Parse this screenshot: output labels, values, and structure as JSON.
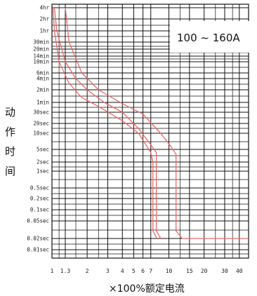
{
  "chart_data": {
    "type": "line",
    "annotation": "100 ~ 160A",
    "ylabel": "动作时间",
    "xlabel": "×100%额定电流",
    "x_scale": "log",
    "xlim": [
      1,
      48
    ],
    "x_ticks": [
      {
        "value": 1,
        "label": "1"
      },
      {
        "value": 1.3,
        "label": "1.3"
      },
      {
        "value": 2,
        "label": "2"
      },
      {
        "value": 3,
        "label": "3"
      },
      {
        "value": 4,
        "label": "4"
      },
      {
        "value": 5,
        "label": "5"
      },
      {
        "value": 6,
        "label": "6"
      },
      {
        "value": 7,
        "label": "7"
      },
      {
        "value": 10,
        "label": "10"
      },
      {
        "value": 15,
        "label": "15"
      },
      {
        "value": 20,
        "label": "20"
      },
      {
        "value": 30,
        "label": "30"
      },
      {
        "value": 40,
        "label": "40"
      }
    ],
    "y_ticks": [
      "4hr",
      "2hr",
      "1hr",
      "30min",
      "20min",
      "14min",
      "10min",
      "6min",
      "4min",
      "2min",
      "1min",
      "30sec",
      "20sec",
      "10sec",
      "5sec",
      "2sec",
      "1sec",
      "0.5sec",
      "0.2sec",
      "0.1sec",
      "0.05sec",
      "0.02sec",
      "0.01sec"
    ],
    "grid": true,
    "series": [
      {
        "color": "#e86a6a",
        "points": [
          [
            1.05,
            "4hr"
          ],
          [
            1.1,
            "1hr"
          ],
          [
            1.3,
            "10min"
          ],
          [
            1.6,
            "4min"
          ],
          [
            2.0,
            "2min"
          ],
          [
            2.8,
            "1min"
          ],
          [
            4.0,
            "30sec"
          ],
          [
            5.5,
            "14sec"
          ],
          [
            7.5,
            "5sec"
          ],
          [
            7.8,
            "4sec"
          ],
          [
            7.8,
            "0.03sec"
          ],
          [
            8.5,
            "0.02sec"
          ]
        ]
      },
      {
        "color": "#e86a6a",
        "points": [
          [
            1.02,
            "4hr"
          ],
          [
            1.05,
            "1hr"
          ],
          [
            1.15,
            "10min"
          ],
          [
            1.4,
            "3min"
          ],
          [
            1.8,
            "1.3min"
          ],
          [
            2.5,
            "45sec"
          ],
          [
            4.0,
            "22sec"
          ],
          [
            5.5,
            "10sec"
          ],
          [
            7.0,
            "4sec"
          ],
          [
            7.3,
            "2sec"
          ],
          [
            7.3,
            "0.03sec"
          ],
          [
            7.9,
            "0.02sec"
          ]
        ]
      },
      {
        "color": "#e86a6a",
        "points": [
          [
            1.3,
            "4hr"
          ],
          [
            1.4,
            "30min"
          ],
          [
            1.8,
            "6min"
          ],
          [
            2.5,
            "2min"
          ],
          [
            4.0,
            "55sec"
          ],
          [
            6.0,
            "28sec"
          ],
          [
            8.5,
            "10sec"
          ],
          [
            10.5,
            "5.5sec"
          ],
          [
            11.5,
            "3.5sec"
          ],
          [
            11.5,
            "0.03sec"
          ],
          [
            13.0,
            "0.02sec"
          ],
          [
            48,
            "0.02sec"
          ]
        ]
      }
    ]
  }
}
